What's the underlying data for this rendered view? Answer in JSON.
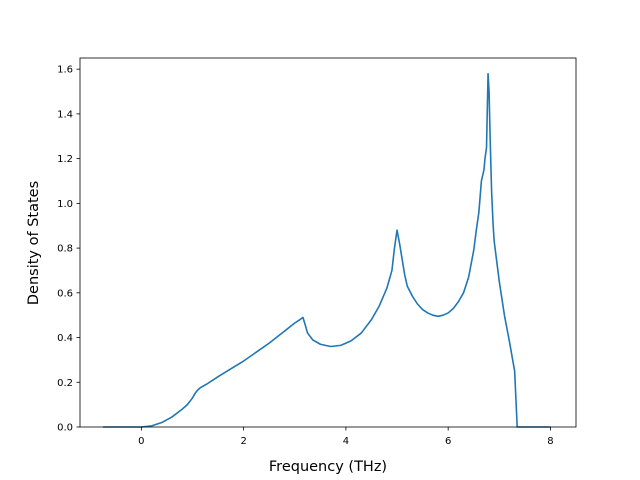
{
  "chart_data": {
    "type": "line",
    "title": "",
    "xlabel": "Frequency (THz)",
    "ylabel": "Density of States",
    "xlim": [
      -1.2,
      8.5
    ],
    "ylim": [
      0.0,
      1.65
    ],
    "xticks": [
      0,
      2,
      4,
      6,
      8
    ],
    "yticks": [
      0.0,
      0.2,
      0.4,
      0.6,
      0.8,
      1.0,
      1.2,
      1.4,
      1.6
    ],
    "xtick_labels": [
      "0",
      "2",
      "4",
      "6",
      "8"
    ],
    "ytick_labels": [
      "0.0",
      "0.2",
      "0.4",
      "0.6",
      "0.8",
      "1.0",
      "1.2",
      "1.4",
      "1.6"
    ],
    "grid": false,
    "legend": false,
    "colors": {
      "line": "#1f77b4",
      "axes": "#000000",
      "background": "#ffffff"
    },
    "series": [
      {
        "x": [
          -0.75,
          0.0,
          0.2,
          0.4,
          0.6,
          0.8,
          0.9,
          1.0,
          1.05,
          1.1,
          1.15,
          1.3,
          1.5,
          1.75,
          2.0,
          2.25,
          2.5,
          2.75,
          3.0,
          3.1,
          3.16,
          3.2,
          3.25,
          3.35,
          3.5,
          3.7,
          3.9,
          4.1,
          4.3,
          4.5,
          4.65,
          4.8,
          4.9,
          4.95,
          5.0,
          5.05,
          5.1,
          5.15,
          5.2,
          5.3,
          5.4,
          5.5,
          5.6,
          5.7,
          5.8,
          5.9,
          6.0,
          6.1,
          6.2,
          6.3,
          6.4,
          6.5,
          6.55,
          6.6,
          6.65,
          6.7,
          6.72,
          6.75,
          6.78,
          6.8,
          6.82,
          6.85,
          6.88,
          6.9,
          7.0,
          7.1,
          7.2,
          7.3,
          7.35,
          8.0
        ],
        "y": [
          0.0,
          0.0,
          0.005,
          0.02,
          0.045,
          0.08,
          0.1,
          0.13,
          0.15,
          0.165,
          0.175,
          0.195,
          0.225,
          0.26,
          0.295,
          0.335,
          0.375,
          0.42,
          0.465,
          0.48,
          0.49,
          0.46,
          0.42,
          0.39,
          0.37,
          0.36,
          0.365,
          0.385,
          0.42,
          0.48,
          0.54,
          0.62,
          0.7,
          0.8,
          0.88,
          0.82,
          0.75,
          0.68,
          0.63,
          0.585,
          0.55,
          0.525,
          0.51,
          0.5,
          0.495,
          0.5,
          0.51,
          0.53,
          0.56,
          0.6,
          0.67,
          0.79,
          0.88,
          0.96,
          1.1,
          1.15,
          1.2,
          1.25,
          1.58,
          1.5,
          1.3,
          1.05,
          0.9,
          0.83,
          0.65,
          0.5,
          0.38,
          0.25,
          0.0,
          0.0
        ]
      }
    ]
  }
}
